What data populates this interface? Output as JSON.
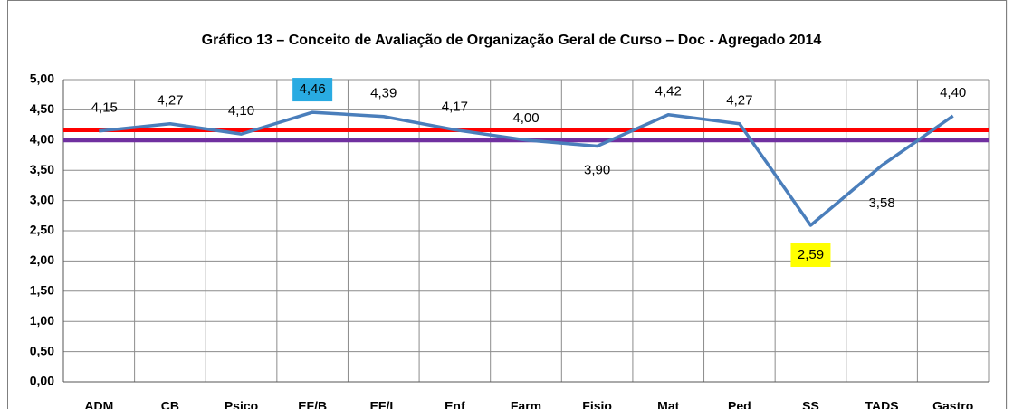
{
  "chart_data": {
    "type": "line",
    "title": "Gráfico 13 – Conceito de Avaliação de Organização Geral de Curso – Doc - Agregado 2014",
    "categories": [
      "ADM",
      "CB",
      "Psico",
      "EF/B",
      "EF/L",
      "Enf",
      "Farm",
      "Fisio",
      "Mat",
      "Ped",
      "SS",
      "TADS",
      "Gastro"
    ],
    "values": [
      4.15,
      4.27,
      4.1,
      4.46,
      4.39,
      4.17,
      4.0,
      3.9,
      4.42,
      4.27,
      2.59,
      3.58,
      4.4
    ],
    "value_labels": [
      "4,15",
      "4,27",
      "4,10",
      "4,46",
      "4,39",
      "4,17",
      "4,00",
      "3,90",
      "4,42",
      "4,27",
      "2,59",
      "3,58",
      "4,40"
    ],
    "label_backgrounds": [
      null,
      null,
      null,
      "#29abe2",
      null,
      null,
      null,
      null,
      null,
      null,
      "#ffff00",
      null,
      null
    ],
    "color": "#4a7ebb",
    "reference_lines": [
      {
        "value": 4.17,
        "color": "#ff0000"
      },
      {
        "value": 4.0,
        "color": "#7030a0"
      }
    ],
    "ylim": [
      0,
      5
    ],
    "yticks": [
      {
        "value": 0,
        "label": "0,00"
      },
      {
        "value": 0.5,
        "label": "0,50"
      },
      {
        "value": 1,
        "label": "1,00"
      },
      {
        "value": 1.5,
        "label": "1,50"
      },
      {
        "value": 2,
        "label": "2,00"
      },
      {
        "value": 2.5,
        "label": "2,50"
      },
      {
        "value": 3,
        "label": "3,00"
      },
      {
        "value": 3.5,
        "label": "3,50"
      },
      {
        "value": 4,
        "label": "4,00"
      },
      {
        "value": 4.5,
        "label": "4,50"
      },
      {
        "value": 5,
        "label": "5,00"
      }
    ],
    "grid": true
  }
}
